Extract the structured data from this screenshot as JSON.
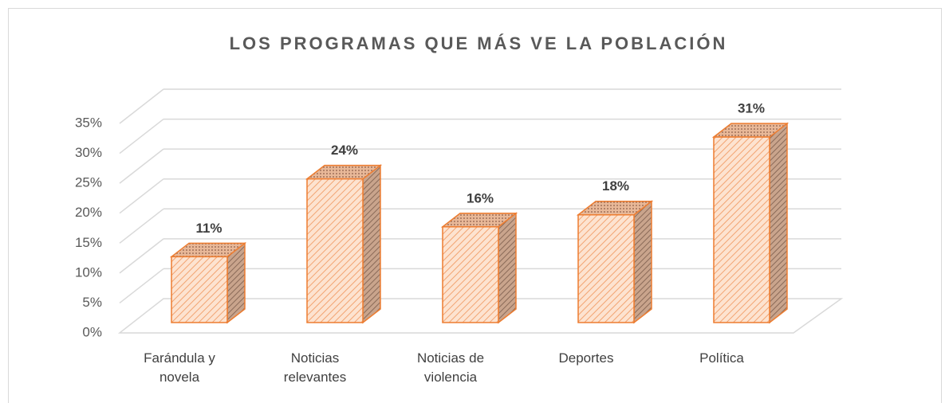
{
  "chart_data": {
    "type": "bar3d",
    "title": "LOS PROGRAMAS QUE MÁS VE LA POBLACIÓN",
    "categories": [
      "Farándula y novela",
      "Noticias relevantes",
      "Noticias de violencia",
      "Deportes",
      "Política"
    ],
    "values": [
      11,
      24,
      16,
      18,
      31
    ],
    "value_labels": [
      "11%",
      "24%",
      "16%",
      "18%",
      "31%"
    ],
    "color": "#ed7d31",
    "ylim": [
      0,
      35
    ],
    "yticks": [
      {
        "value": 0,
        "label": "0%"
      },
      {
        "value": 5,
        "label": "5%"
      },
      {
        "value": 10,
        "label": "10%"
      },
      {
        "value": 15,
        "label": "15%"
      },
      {
        "value": 20,
        "label": "20%"
      },
      {
        "value": 25,
        "label": "25%"
      },
      {
        "value": 30,
        "label": "30%"
      },
      {
        "value": 35,
        "label": "35%"
      }
    ],
    "grid": true
  }
}
